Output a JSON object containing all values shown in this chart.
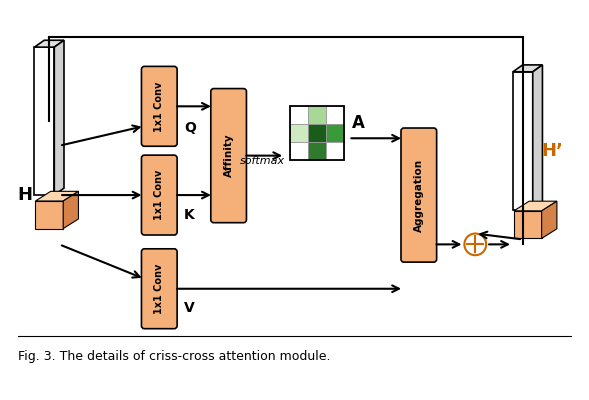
{
  "title": "Fig. 3. The details of criss-cross attention module.",
  "bg_color": "#ffffff",
  "box_color": "#f5b07a",
  "matrix_colors": [
    [
      "#ffffff",
      "#a8d898",
      "#ffffff"
    ],
    [
      "#d0eac0",
      "#1a5c1a",
      "#3a9a3a"
    ],
    [
      "#ffffff",
      "#2e7a2e",
      "#ffffff"
    ]
  ],
  "H_label": "H",
  "Hp_label": "H’",
  "A_label": "A",
  "Q_label": "Q",
  "K_label": "K",
  "V_label": "V",
  "softmax_label": "softmax"
}
